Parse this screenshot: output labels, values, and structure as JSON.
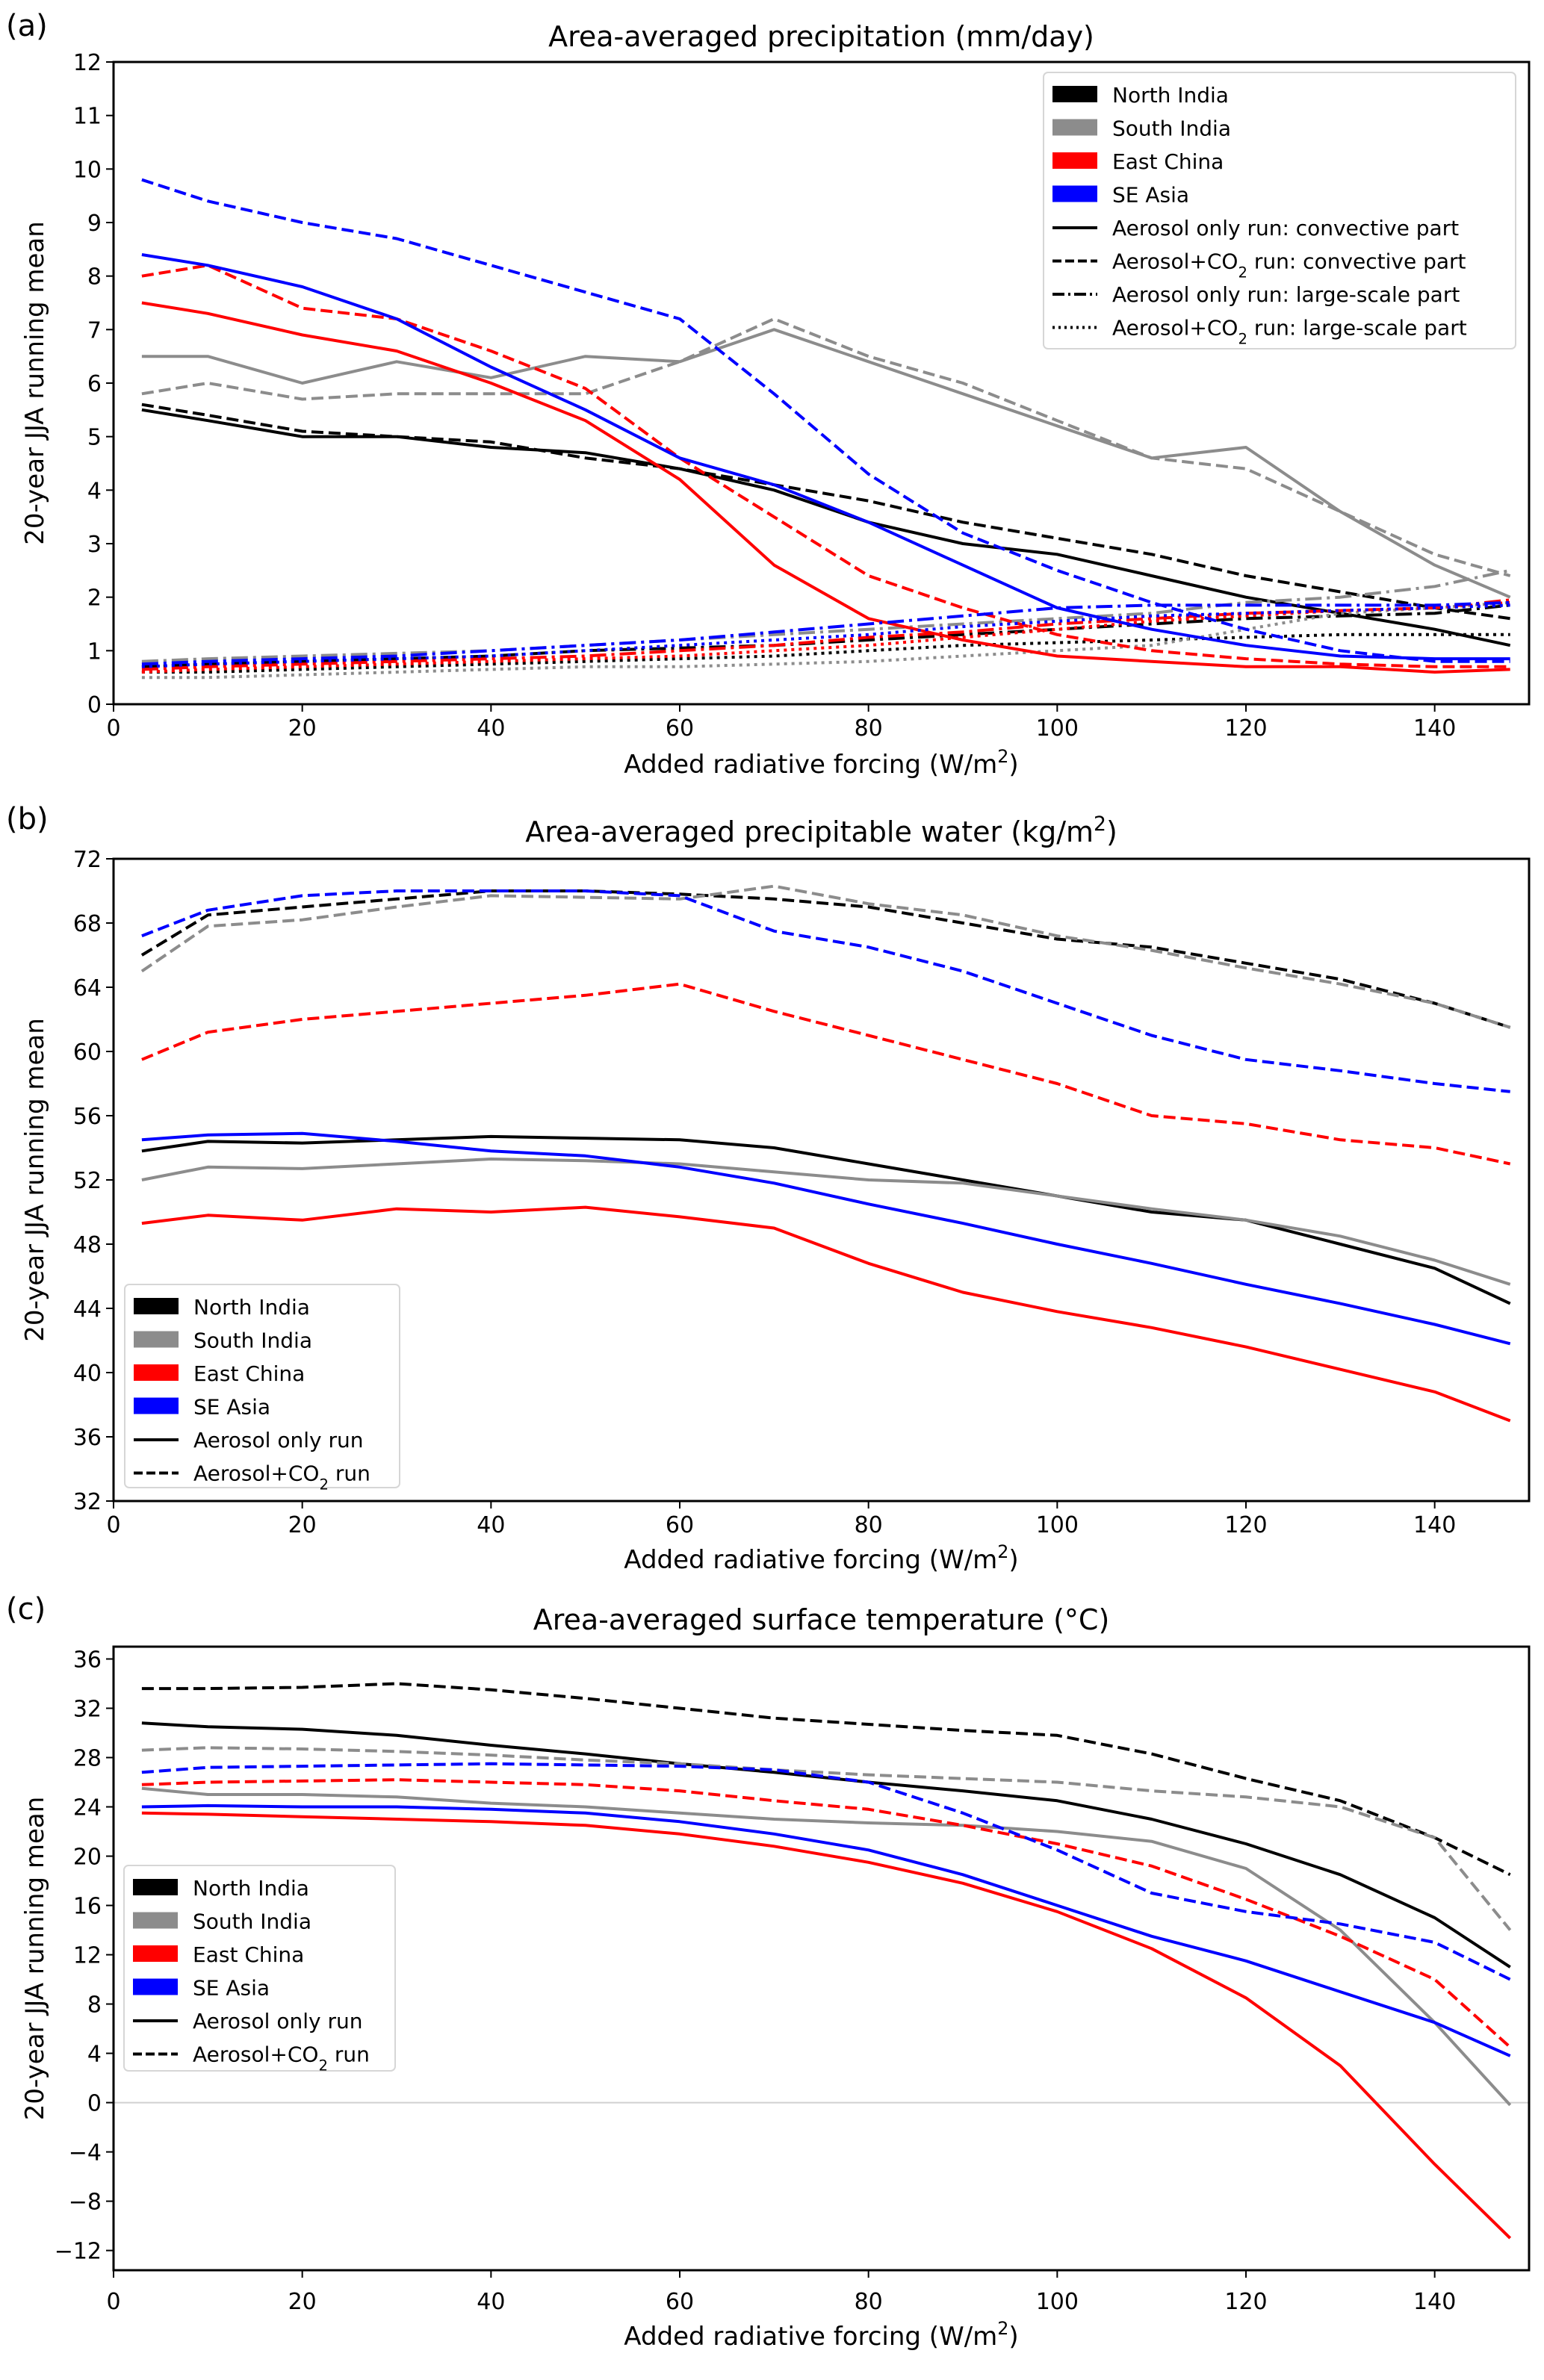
{
  "chart_data": [
    {
      "type": "line",
      "panel_label": "(a)",
      "title": "Area-averaged precipitation (mm/day)",
      "xlabel": "Added radiative forcing (W/m²)",
      "ylabel": "20-year JJA running mean",
      "xlim": [
        0,
        150
      ],
      "ylim": [
        0,
        12
      ],
      "xticks": [
        0,
        20,
        40,
        60,
        80,
        100,
        120,
        140
      ],
      "yticks": [
        0,
        1,
        2,
        3,
        4,
        5,
        6,
        7,
        8,
        9,
        10,
        11,
        12
      ],
      "grid": false,
      "legend_position": "top-right",
      "legend": [
        {
          "label": "North India",
          "kind": "patch",
          "color": "#000000"
        },
        {
          "label": "South India",
          "kind": "patch",
          "color": "#8c8c8c"
        },
        {
          "label": "East China",
          "kind": "patch",
          "color": "#ff0000"
        },
        {
          "label": "SE Asia",
          "kind": "patch",
          "color": "#0000ff"
        },
        {
          "label": "Aerosol only run: convective part",
          "kind": "line",
          "style": "solid"
        },
        {
          "label": "Aerosol+CO₂ run: convective part",
          "kind": "line",
          "style": "dashed"
        },
        {
          "label": "Aerosol only run: large-scale part",
          "kind": "line",
          "style": "dashdot"
        },
        {
          "label": "Aerosol+CO₂ run: large-scale part",
          "kind": "line",
          "style": "dotted"
        }
      ],
      "x": [
        3,
        10,
        20,
        30,
        40,
        50,
        60,
        70,
        80,
        90,
        100,
        110,
        120,
        130,
        140,
        148
      ],
      "series": [
        {
          "name": "North India – Aerosol only – convective",
          "region": "North India",
          "style": "solid",
          "values": [
            5.5,
            5.3,
            5.0,
            5.0,
            4.8,
            4.7,
            4.4,
            4.0,
            3.4,
            3.0,
            2.8,
            2.4,
            2.0,
            1.7,
            1.4,
            1.1
          ]
        },
        {
          "name": "North India – Aerosol+CO2 – convective",
          "region": "North India",
          "style": "dashed",
          "values": [
            5.6,
            5.4,
            5.1,
            5.0,
            4.9,
            4.6,
            4.4,
            4.1,
            3.8,
            3.4,
            3.1,
            2.8,
            2.4,
            2.1,
            1.8,
            1.6
          ]
        },
        {
          "name": "North India – Aerosol only – large-scale",
          "region": "North India",
          "style": "dashdot",
          "values": [
            0.7,
            0.75,
            0.8,
            0.85,
            0.9,
            1.0,
            1.05,
            1.1,
            1.2,
            1.3,
            1.4,
            1.5,
            1.6,
            1.65,
            1.7,
            1.85
          ]
        },
        {
          "name": "North India – Aerosol+CO2 – large-scale",
          "region": "North India",
          "style": "dotted",
          "values": [
            0.6,
            0.6,
            0.65,
            0.7,
            0.75,
            0.8,
            0.85,
            0.9,
            1.0,
            1.1,
            1.15,
            1.2,
            1.25,
            1.3,
            1.3,
            1.3
          ]
        },
        {
          "name": "South India – Aerosol only – convective",
          "region": "South India",
          "style": "solid",
          "values": [
            6.5,
            6.5,
            6.0,
            6.4,
            6.1,
            6.5,
            6.4,
            7.0,
            6.4,
            5.8,
            5.2,
            4.6,
            4.8,
            3.6,
            2.6,
            2.0
          ]
        },
        {
          "name": "South India – Aerosol+CO2 – convective",
          "region": "South India",
          "style": "dashed",
          "values": [
            5.8,
            6.0,
            5.7,
            5.8,
            5.8,
            5.8,
            6.4,
            7.2,
            6.5,
            6.0,
            5.3,
            4.6,
            4.4,
            3.6,
            2.8,
            2.4
          ]
        },
        {
          "name": "South India – Aerosol only – large-scale",
          "region": "South India",
          "style": "dashdot",
          "values": [
            0.8,
            0.85,
            0.9,
            0.95,
            1.0,
            1.1,
            1.2,
            1.3,
            1.4,
            1.5,
            1.6,
            1.7,
            1.9,
            2.0,
            2.2,
            2.5
          ]
        },
        {
          "name": "South India – Aerosol+CO2 – large-scale",
          "region": "South India",
          "style": "dotted",
          "values": [
            0.5,
            0.5,
            0.55,
            0.6,
            0.65,
            0.7,
            0.7,
            0.75,
            0.8,
            0.9,
            1.0,
            1.1,
            1.4,
            1.7,
            1.8,
            1.9
          ]
        },
        {
          "name": "East China – Aerosol only – convective",
          "region": "East China",
          "style": "solid",
          "values": [
            7.5,
            7.3,
            6.9,
            6.6,
            6.0,
            5.3,
            4.2,
            2.6,
            1.6,
            1.2,
            0.9,
            0.8,
            0.7,
            0.7,
            0.6,
            0.65
          ]
        },
        {
          "name": "East China – Aerosol+CO2 – convective",
          "region": "East China",
          "style": "dashed",
          "values": [
            8.0,
            8.2,
            7.4,
            7.2,
            6.6,
            5.9,
            4.6,
            3.5,
            2.4,
            1.8,
            1.3,
            1.0,
            0.85,
            0.75,
            0.7,
            0.7
          ]
        },
        {
          "name": "East China – Aerosol only – large-scale",
          "region": "East China",
          "style": "dashdot",
          "values": [
            0.65,
            0.7,
            0.75,
            0.8,
            0.85,
            0.9,
            1.0,
            1.1,
            1.25,
            1.35,
            1.5,
            1.6,
            1.7,
            1.75,
            1.8,
            1.95
          ]
        },
        {
          "name": "East China – Aerosol+CO2 – large-scale",
          "region": "East China",
          "style": "dotted",
          "values": [
            0.6,
            0.65,
            0.7,
            0.75,
            0.8,
            0.85,
            0.9,
            1.0,
            1.1,
            1.25,
            1.4,
            1.55,
            1.65,
            1.75,
            1.8,
            1.9
          ]
        },
        {
          "name": "SE Asia – Aerosol only – convective",
          "region": "SE Asia",
          "style": "solid",
          "values": [
            8.4,
            8.2,
            7.8,
            7.2,
            6.3,
            5.5,
            4.6,
            4.1,
            3.4,
            2.6,
            1.8,
            1.4,
            1.1,
            0.9,
            0.85,
            0.85
          ]
        },
        {
          "name": "SE Asia – Aerosol+CO2 – convective",
          "region": "SE Asia",
          "style": "dashed",
          "values": [
            9.8,
            9.4,
            9.0,
            8.7,
            8.2,
            7.7,
            7.2,
            5.8,
            4.3,
            3.2,
            2.5,
            1.9,
            1.4,
            1.0,
            0.8,
            0.8
          ]
        },
        {
          "name": "SE Asia – Aerosol only – large-scale",
          "region": "SE Asia",
          "style": "dashdot",
          "values": [
            0.75,
            0.8,
            0.85,
            0.9,
            1.0,
            1.1,
            1.2,
            1.35,
            1.5,
            1.65,
            1.8,
            1.85,
            1.85,
            1.85,
            1.85,
            1.9
          ]
        },
        {
          "name": "SE Asia – Aerosol+CO2 – large-scale",
          "region": "SE Asia",
          "style": "dotted",
          "values": [
            0.7,
            0.75,
            0.8,
            0.85,
            0.9,
            1.0,
            1.1,
            1.2,
            1.3,
            1.45,
            1.55,
            1.65,
            1.7,
            1.75,
            1.8,
            1.85
          ]
        }
      ]
    },
    {
      "type": "line",
      "panel_label": "(b)",
      "title": "Area-averaged precipitable water (kg/m²)",
      "xlabel": "Added radiative forcing (W/m²)",
      "ylabel": "20-year JJA running mean",
      "xlim": [
        0,
        150
      ],
      "ylim": [
        32,
        72
      ],
      "xticks": [
        0,
        20,
        40,
        60,
        80,
        100,
        120,
        140
      ],
      "yticks": [
        32,
        36,
        40,
        44,
        48,
        52,
        56,
        60,
        64,
        68,
        72
      ],
      "grid": false,
      "legend_position": "bottom-left",
      "legend": [
        {
          "label": "North India",
          "kind": "patch",
          "color": "#000000"
        },
        {
          "label": "South India",
          "kind": "patch",
          "color": "#8c8c8c"
        },
        {
          "label": "East China",
          "kind": "patch",
          "color": "#ff0000"
        },
        {
          "label": "SE Asia",
          "kind": "patch",
          "color": "#0000ff"
        },
        {
          "label": "Aerosol only run",
          "kind": "line",
          "style": "solid"
        },
        {
          "label": "Aerosol+CO₂ run",
          "kind": "line",
          "style": "dashed"
        }
      ],
      "x": [
        3,
        10,
        20,
        30,
        40,
        50,
        60,
        70,
        80,
        90,
        100,
        110,
        120,
        130,
        140,
        148
      ],
      "series": [
        {
          "name": "North India – Aerosol only",
          "region": "North India",
          "style": "solid",
          "values": [
            53.8,
            54.4,
            54.3,
            54.5,
            54.7,
            54.6,
            54.5,
            54.0,
            53.0,
            52.0,
            51.0,
            50.0,
            49.5,
            48.0,
            46.5,
            44.3
          ]
        },
        {
          "name": "North India – Aerosol+CO2",
          "region": "North India",
          "style": "dashed",
          "values": [
            66.0,
            68.5,
            69.0,
            69.5,
            70.0,
            70.0,
            69.8,
            69.5,
            69.0,
            68.0,
            67.0,
            66.5,
            65.5,
            64.5,
            63.0,
            61.5
          ]
        },
        {
          "name": "South India – Aerosol only",
          "region": "South India",
          "style": "solid",
          "values": [
            52.0,
            52.8,
            52.7,
            53.0,
            53.3,
            53.2,
            53.0,
            52.5,
            52.0,
            51.8,
            51.0,
            50.2,
            49.5,
            48.5,
            47.0,
            45.5
          ]
        },
        {
          "name": "South India – Aerosol+CO2",
          "region": "South India",
          "style": "dashed",
          "values": [
            65.0,
            67.8,
            68.2,
            69.0,
            69.7,
            69.6,
            69.5,
            70.3,
            69.2,
            68.5,
            67.2,
            66.3,
            65.2,
            64.2,
            63.0,
            61.5
          ]
        },
        {
          "name": "East China – Aerosol only",
          "region": "East China",
          "style": "solid",
          "values": [
            49.3,
            49.8,
            49.5,
            50.2,
            50.0,
            50.3,
            49.7,
            49.0,
            46.8,
            45.0,
            43.8,
            42.8,
            41.6,
            40.2,
            38.8,
            37.0
          ]
        },
        {
          "name": "East China – Aerosol+CO2",
          "region": "East China",
          "style": "dashed",
          "values": [
            59.5,
            61.2,
            62.0,
            62.5,
            63.0,
            63.5,
            64.2,
            62.5,
            61.0,
            59.5,
            58.0,
            56.0,
            55.5,
            54.5,
            54.0,
            53.0
          ]
        },
        {
          "name": "SE Asia – Aerosol only",
          "region": "SE Asia",
          "style": "solid",
          "values": [
            54.5,
            54.8,
            54.9,
            54.4,
            53.8,
            53.5,
            52.8,
            51.8,
            50.5,
            49.3,
            48.0,
            46.8,
            45.5,
            44.3,
            43.0,
            41.8
          ]
        },
        {
          "name": "SE Asia – Aerosol+CO2",
          "region": "SE Asia",
          "style": "dashed",
          "values": [
            67.2,
            68.8,
            69.7,
            70.0,
            70.0,
            70.0,
            69.7,
            67.5,
            66.5,
            65.0,
            63.0,
            61.0,
            59.5,
            58.8,
            58.0,
            57.5
          ]
        }
      ]
    },
    {
      "type": "line",
      "panel_label": "(c)",
      "title": "Area-averaged surface temperature (°C)",
      "xlabel": "Added radiative forcing (W/m²)",
      "ylabel": "20-year JJA running mean",
      "xlim": [
        0,
        150
      ],
      "ylim": [
        -14,
        37
      ],
      "xticks": [
        0,
        20,
        40,
        60,
        80,
        100,
        120,
        140
      ],
      "yticks": [
        -12,
        -8,
        -4,
        0,
        4,
        8,
        12,
        16,
        20,
        24,
        28,
        32,
        36
      ],
      "grid": false,
      "zero_line": true,
      "legend_position": "center-left",
      "legend": [
        {
          "label": "North India",
          "kind": "patch",
          "color": "#000000"
        },
        {
          "label": "South India",
          "kind": "patch",
          "color": "#8c8c8c"
        },
        {
          "label": "East China",
          "kind": "patch",
          "color": "#ff0000"
        },
        {
          "label": "SE Asia",
          "kind": "patch",
          "color": "#0000ff"
        },
        {
          "label": "Aerosol only run",
          "kind": "line",
          "style": "solid"
        },
        {
          "label": "Aerosol+CO₂ run",
          "kind": "line",
          "style": "dashed"
        }
      ],
      "x": [
        3,
        10,
        20,
        30,
        40,
        50,
        60,
        70,
        80,
        90,
        100,
        110,
        120,
        130,
        140,
        148
      ],
      "series": [
        {
          "name": "North India – Aerosol only",
          "region": "North India",
          "style": "solid",
          "values": [
            30.8,
            30.5,
            30.3,
            29.8,
            29.0,
            28.3,
            27.5,
            26.8,
            26.0,
            25.3,
            24.5,
            23.0,
            21.0,
            18.5,
            15.0,
            11.0
          ]
        },
        {
          "name": "North India – Aerosol+CO2",
          "region": "North India",
          "style": "dashed",
          "values": [
            33.6,
            33.6,
            33.7,
            34.0,
            33.5,
            32.8,
            32.0,
            31.2,
            30.7,
            30.2,
            29.8,
            28.3,
            26.3,
            24.5,
            21.5,
            18.5
          ]
        },
        {
          "name": "South India – Aerosol only",
          "region": "South India",
          "style": "solid",
          "values": [
            25.5,
            25.0,
            25.0,
            24.8,
            24.3,
            24.0,
            23.5,
            23.0,
            22.7,
            22.5,
            22.0,
            21.2,
            19.0,
            14.0,
            6.5,
            -0.2
          ]
        },
        {
          "name": "South India – Aerosol+CO2",
          "region": "South India",
          "style": "dashed",
          "values": [
            28.6,
            28.8,
            28.7,
            28.5,
            28.2,
            27.8,
            27.5,
            27.0,
            26.6,
            26.3,
            26.0,
            25.3,
            24.8,
            24.0,
            21.5,
            14.0
          ]
        },
        {
          "name": "East China – Aerosol only",
          "region": "East China",
          "style": "solid",
          "values": [
            23.5,
            23.4,
            23.2,
            23.0,
            22.8,
            22.5,
            21.8,
            20.8,
            19.5,
            17.8,
            15.5,
            12.5,
            8.5,
            3.0,
            -5.0,
            -11.0
          ]
        },
        {
          "name": "East China – Aerosol+CO2",
          "region": "East China",
          "style": "dashed",
          "values": [
            25.8,
            26.0,
            26.1,
            26.2,
            26.0,
            25.8,
            25.3,
            24.5,
            23.8,
            22.5,
            21.0,
            19.2,
            16.5,
            13.5,
            10.0,
            4.5
          ]
        },
        {
          "name": "SE Asia – Aerosol only",
          "region": "SE Asia",
          "style": "solid",
          "values": [
            24.0,
            24.1,
            24.0,
            24.0,
            23.8,
            23.5,
            22.8,
            21.8,
            20.5,
            18.5,
            16.0,
            13.5,
            11.5,
            9.0,
            6.5,
            3.8
          ]
        },
        {
          "name": "SE Asia – Aerosol+CO2",
          "region": "SE Asia",
          "style": "dashed",
          "values": [
            26.8,
            27.2,
            27.3,
            27.4,
            27.5,
            27.4,
            27.3,
            27.0,
            26.0,
            23.5,
            20.5,
            17.0,
            15.5,
            14.5,
            13.0,
            10.0
          ]
        }
      ]
    }
  ]
}
